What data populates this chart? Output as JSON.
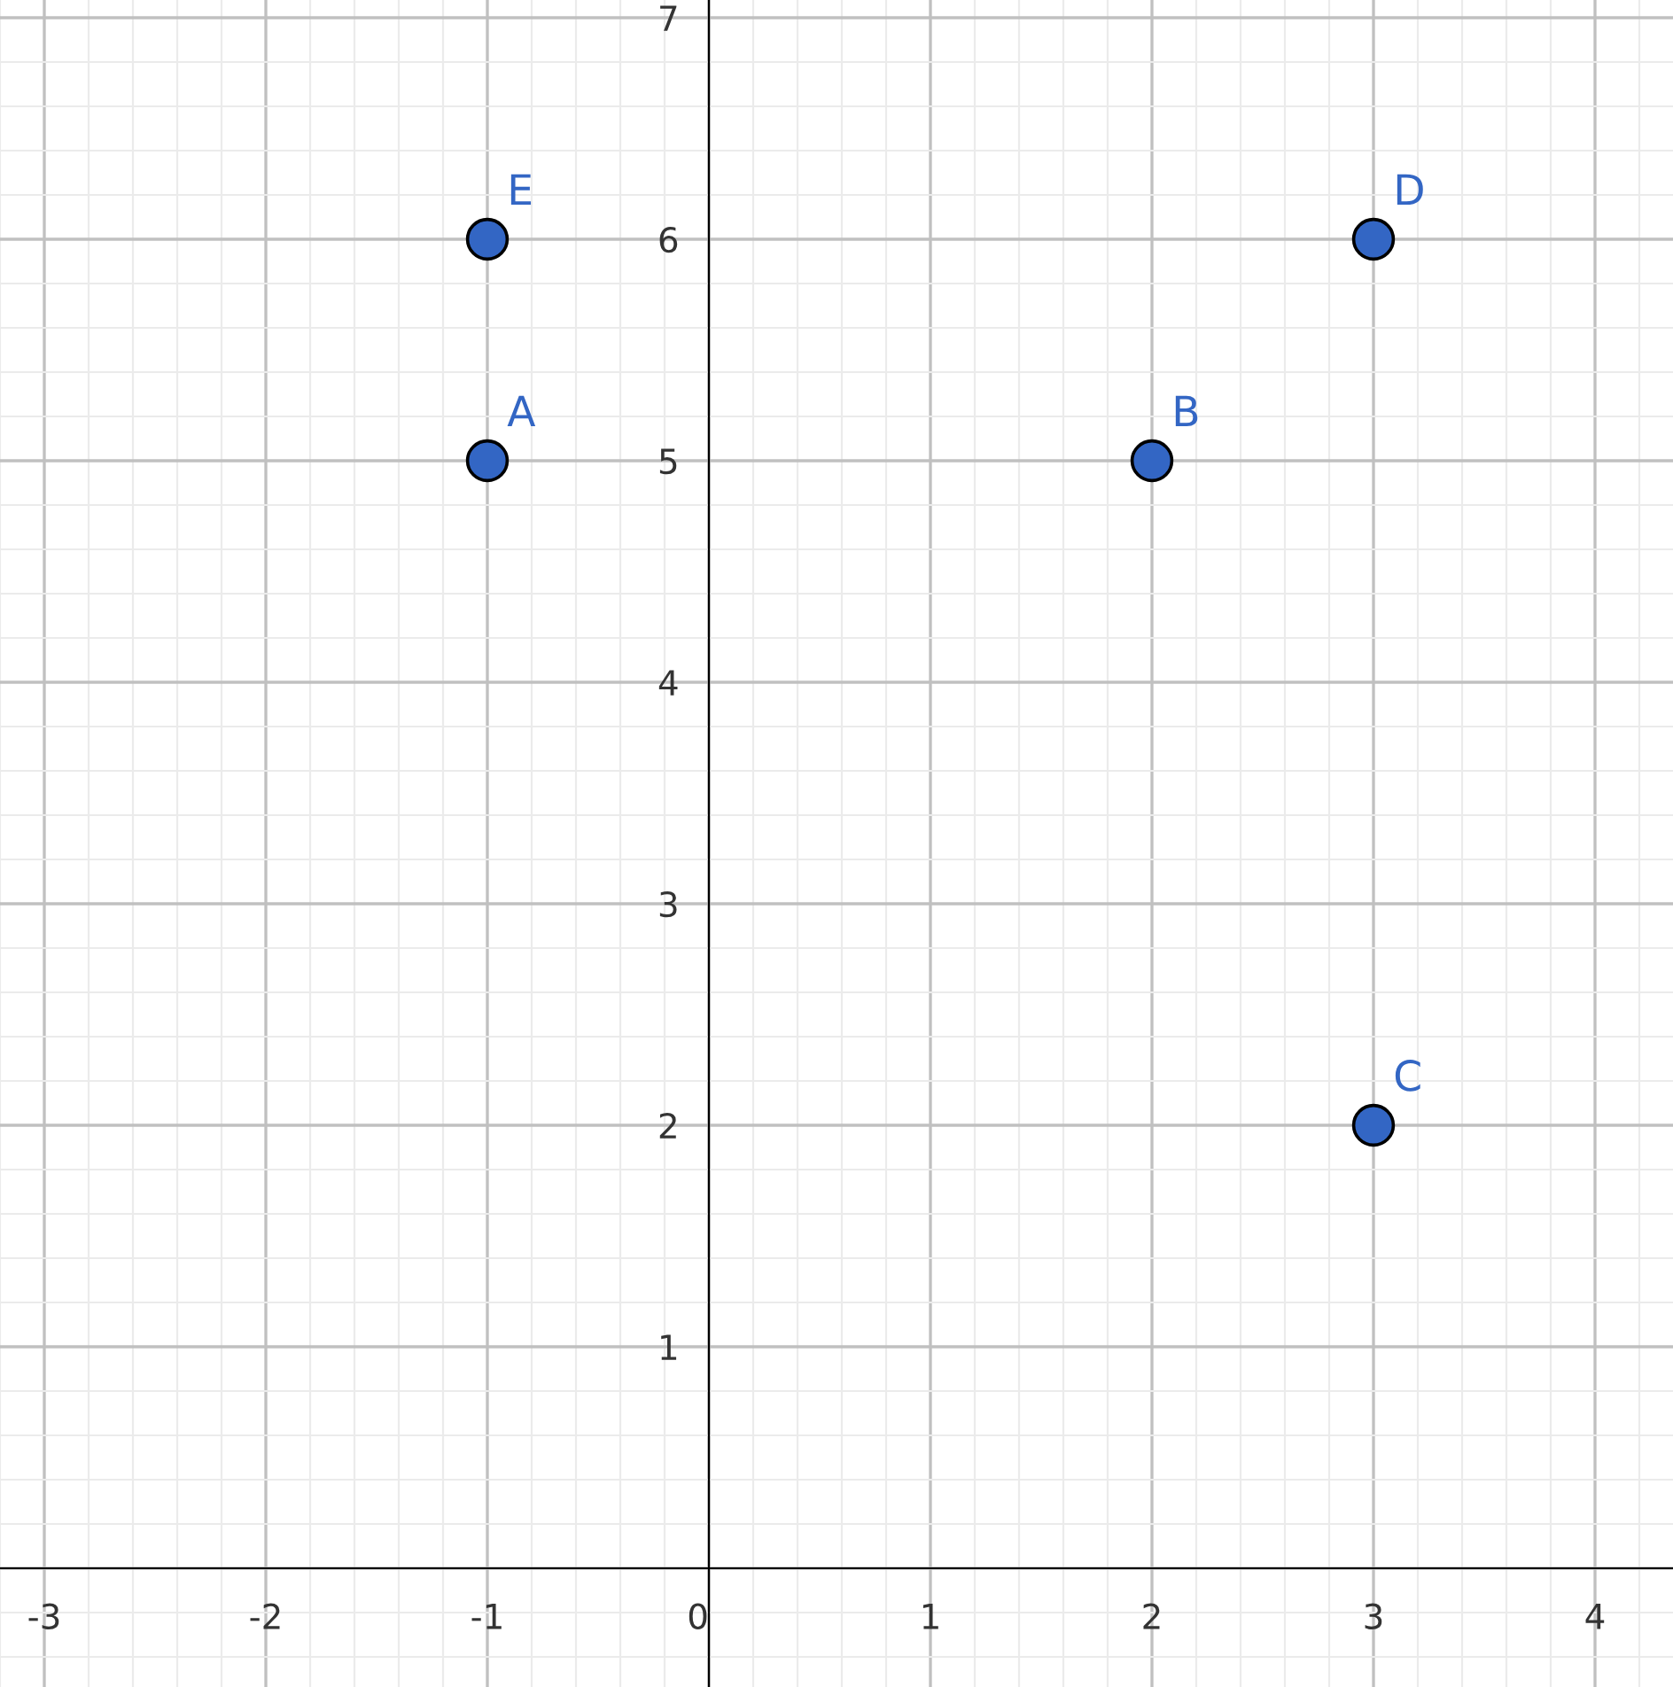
{
  "chart_data": {
    "type": "scatter",
    "x": [
      -1,
      2,
      3,
      3,
      -1
    ],
    "values": [
      5,
      5,
      2,
      6,
      6
    ],
    "color": "#3366c4",
    "marker": "circle",
    "annotations": [
      {
        "text": "A",
        "x": -1,
        "y": 5
      },
      {
        "text": "B",
        "x": 2,
        "y": 5
      },
      {
        "text": "C",
        "x": 3,
        "y": 2
      },
      {
        "text": "D",
        "x": 3,
        "y": 6
      },
      {
        "text": "E",
        "x": -1,
        "y": 6
      }
    ],
    "xlim": [
      -3.2,
      4.352
    ],
    "ylim": [
      -0.536,
      7.08
    ],
    "xticks": [
      -3,
      -2,
      -1,
      0,
      1,
      2,
      3,
      4
    ],
    "yticks": [
      1,
      2,
      3,
      4,
      5,
      6,
      7
    ],
    "grid": true
  }
}
